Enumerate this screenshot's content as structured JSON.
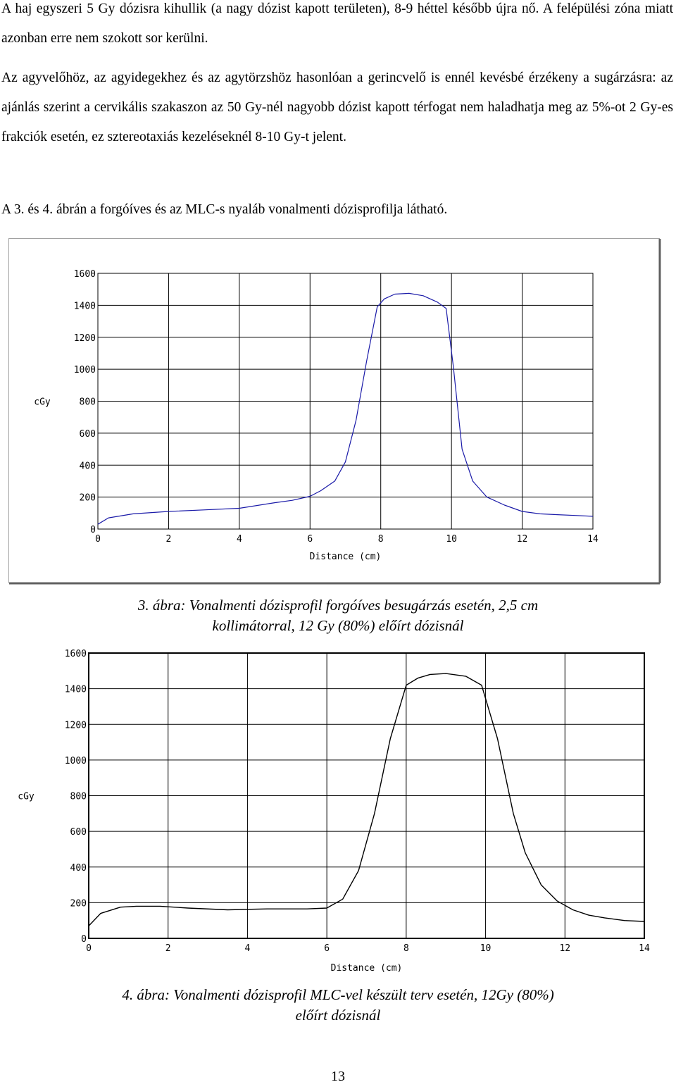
{
  "text": {
    "p1": "A haj egyszeri 5 Gy dózisra kihullik (a nagy dózist kapott területen), 8-9 héttel később újra nő. A felépülési zóna miatt azonban erre nem szokott sor kerülni.",
    "p2": "Az agyvelőhöz, az agyidegekhez és az agytörzshöz hasonlóan a gerincvelő is ennél kevésbé érzékeny a sugárzásra: az ajánlás szerint a cervikális szakaszon az 50 Gy-nél nagyobb dózist kapott térfogat nem haladhatja meg az 5%-ot 2 Gy-es frakciók esetén, ez sztereotaxiás kezeléseknél 8-10 Gy-t jelent.",
    "p3": "A 3. és 4. ábrán a forgóíves és az MLC-s nyaláb vonalmenti dózisprofilja látható.",
    "caption3_line1": "3. ábra: Vonalmenti dózisprofil forgóíves besugárzás esetén, 2,5 cm",
    "caption3_line2": "kollimátorral, 12 Gy (80%) előírt dózisnál",
    "caption4_line1": "4. ábra: Vonalmenti dózisprofil MLC-vel készült terv esetén, 12Gy (80%)",
    "caption4_line2": "előírt dózisnál",
    "page_number": "13"
  },
  "chart_data": [
    {
      "type": "line",
      "ylabel": "cGy",
      "xlabel": "Distance (cm)",
      "xlim": [
        0,
        14
      ],
      "ylim": [
        0,
        1600
      ],
      "xticks": [
        "0",
        "2",
        "4",
        "6",
        "8",
        "10",
        "12",
        "14"
      ],
      "yticks": [
        "0",
        "200",
        "400",
        "600",
        "800",
        "1000",
        "1200",
        "1400",
        "1600"
      ],
      "grid": true,
      "series_color": "#1a1aa8",
      "series": [
        {
          "x": [
            0,
            0.3,
            1,
            2,
            3,
            4,
            5,
            5.5,
            6,
            6.3,
            6.7,
            7.0,
            7.3,
            7.6,
            7.9,
            8.1,
            8.4,
            8.8,
            9.2,
            9.6,
            9.85,
            10.05,
            10.3,
            10.6,
            11.0,
            11.5,
            12.0,
            12.5,
            13.0,
            13.5,
            14.0
          ],
          "y": [
            30,
            70,
            95,
            110,
            120,
            130,
            165,
            180,
            205,
            240,
            300,
            420,
            680,
            1050,
            1390,
            1440,
            1470,
            1475,
            1460,
            1420,
            1380,
            1020,
            500,
            300,
            200,
            150,
            110,
            95,
            90,
            85,
            80
          ]
        }
      ]
    },
    {
      "type": "line",
      "ylabel": "cGy",
      "xlabel": "Distance (cm)",
      "xlim": [
        0,
        14
      ],
      "ylim": [
        0,
        1600
      ],
      "xticks": [
        "0",
        "2",
        "4",
        "6",
        "8",
        "10",
        "12",
        "14"
      ],
      "yticks": [
        "0",
        "200",
        "400",
        "600",
        "800",
        "1000",
        "1200",
        "1400",
        "1600"
      ],
      "grid": true,
      "series_color": "#000000",
      "series": [
        {
          "x": [
            0,
            0.3,
            0.8,
            1.2,
            1.8,
            2.5,
            3.5,
            4.5,
            5.5,
            6.0,
            6.4,
            6.8,
            7.2,
            7.6,
            8.0,
            8.3,
            8.6,
            9.0,
            9.5,
            9.9,
            10.3,
            10.7,
            11.0,
            11.4,
            11.8,
            12.2,
            12.6,
            13.0,
            13.5,
            14.0
          ],
          "y": [
            70,
            140,
            175,
            180,
            180,
            170,
            160,
            165,
            165,
            170,
            220,
            380,
            700,
            1120,
            1420,
            1460,
            1480,
            1485,
            1470,
            1420,
            1120,
            700,
            480,
            300,
            210,
            160,
            130,
            115,
            100,
            95
          ]
        }
      ]
    }
  ]
}
